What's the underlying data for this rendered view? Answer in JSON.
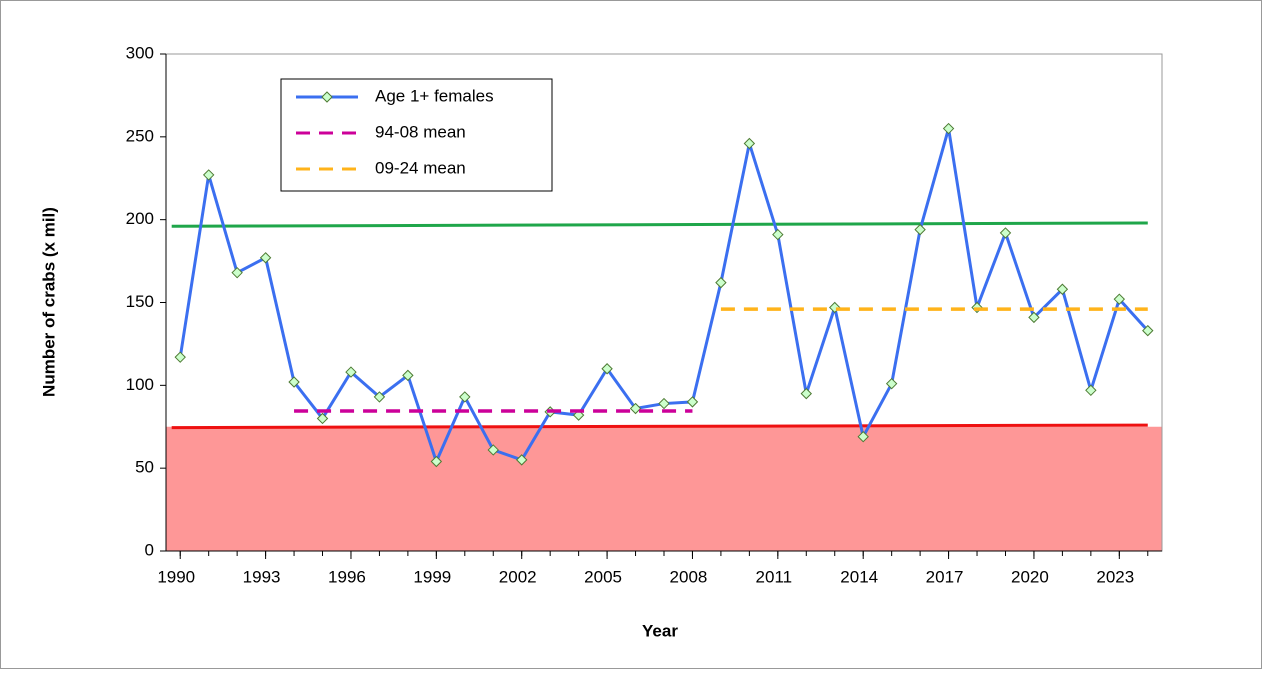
{
  "chart_data": {
    "type": "line",
    "ylabel": "Number of crabs (x mil)",
    "xlabel": "Year",
    "xlim": [
      1989.5,
      2024.5
    ],
    "ylim": [
      0,
      300
    ],
    "xticks": [
      1990,
      1993,
      1996,
      1999,
      2002,
      2005,
      2008,
      2011,
      2014,
      2017,
      2020,
      2023
    ],
    "yticks": [
      0,
      50,
      100,
      150,
      200,
      250,
      300
    ],
    "legend": "upper left",
    "series": [
      {
        "name": "Age 1+ females",
        "color": "#3b6ff0",
        "marker": "diamond",
        "x": [
          1990,
          1991,
          1992,
          1993,
          1994,
          1995,
          1996,
          1997,
          1998,
          1999,
          2000,
          2001,
          2002,
          2003,
          2004,
          2005,
          2006,
          2007,
          2008,
          2009,
          2010,
          2011,
          2012,
          2013,
          2014,
          2015,
          2016,
          2017,
          2018,
          2019,
          2020,
          2021,
          2022,
          2023,
          2024
        ],
        "values": [
          117,
          227,
          168,
          177,
          102,
          80,
          108,
          93,
          106,
          54,
          93,
          61,
          55,
          84,
          82,
          110,
          86,
          89,
          90,
          162,
          246,
          191,
          95,
          147,
          69,
          101,
          194,
          255,
          147,
          192,
          141,
          158,
          97,
          152,
          133
        ]
      },
      {
        "name": "94-08 mean",
        "color": "#cc0099",
        "dashed": true,
        "x": [
          1994,
          2008
        ],
        "values": [
          84.5,
          84.5
        ]
      },
      {
        "name": "09-24 mean",
        "color": "#ffb31a",
        "dashed": true,
        "x": [
          2009,
          2024
        ],
        "values": [
          146,
          146
        ]
      }
    ],
    "reference_lines": [
      {
        "color": "#1fa64a",
        "x": [
          1989.7,
          2024
        ],
        "values": [
          196,
          198
        ]
      },
      {
        "color": "#ee1111",
        "x": [
          1989.7,
          2024
        ],
        "values": [
          74.5,
          76
        ]
      }
    ],
    "band": {
      "color": "#fe9797",
      "values": [
        0,
        75
      ]
    }
  }
}
